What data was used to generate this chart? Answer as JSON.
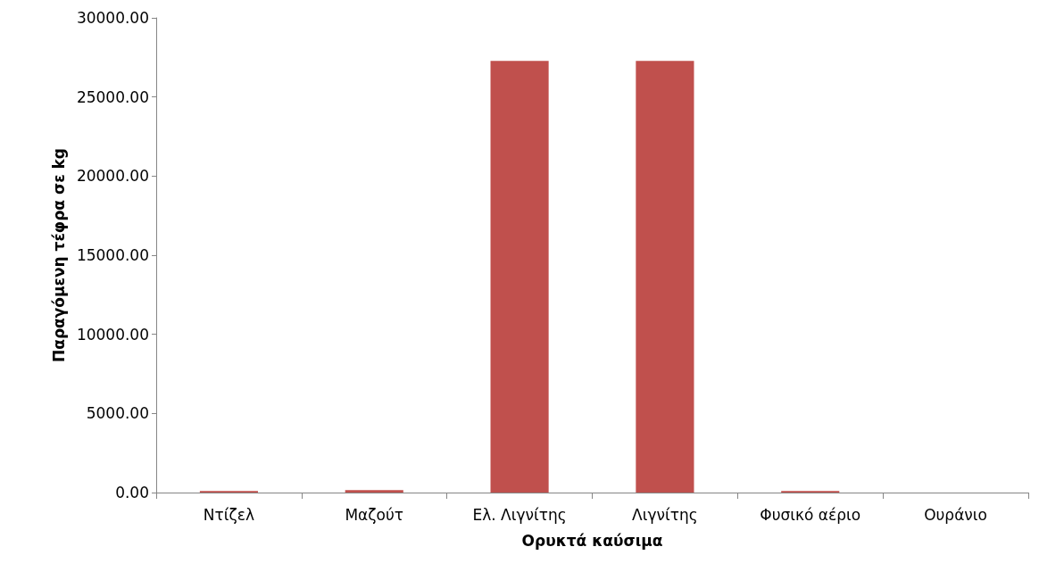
{
  "chart_data": {
    "type": "bar",
    "xlabel": "Ορυκτά καύσιμα",
    "ylabel": "Παραγόμενη τέφρα σε kg",
    "categories": [
      "Ντίζελ",
      "Μαζούτ",
      "Ελ. Λιγνίτης",
      "Λιγνίτης",
      "Φυσικό αέριο",
      "Ουράνιο"
    ],
    "values": [
      100,
      150,
      27280,
      27280,
      100,
      0
    ],
    "color": "#c0504d",
    "ylim": [
      0,
      30000
    ],
    "yticks": [
      {
        "value": 0,
        "label": "0.00"
      },
      {
        "value": 5000,
        "label": "5000.00"
      },
      {
        "value": 10000,
        "label": "10000.00"
      },
      {
        "value": 15000,
        "label": "15000.00"
      },
      {
        "value": 20000,
        "label": "20000.00"
      },
      {
        "value": 25000,
        "label": "25000.00"
      },
      {
        "value": 30000,
        "label": "30000.00"
      }
    ],
    "grid": false
  }
}
